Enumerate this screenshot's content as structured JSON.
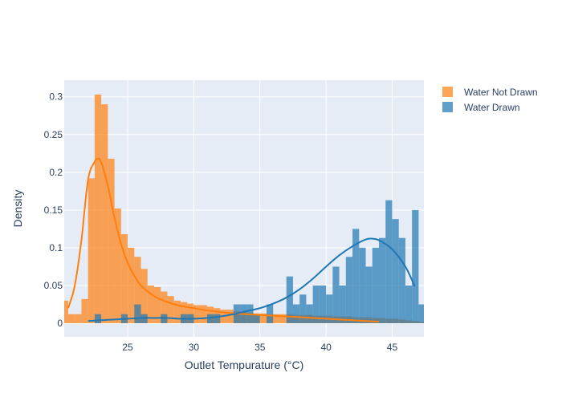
{
  "chart_data": {
    "type": "histogram",
    "title": "",
    "xlabel": "Outlet Tempurature (°C)",
    "ylabel": "Density",
    "xlim": [
      20.2,
      47.4
    ],
    "ylim": [
      -0.018,
      0.322
    ],
    "xticks": [
      25,
      30,
      35,
      40,
      45
    ],
    "yticks": [
      0,
      0.05,
      0.1,
      0.15,
      0.2,
      0.25,
      0.3
    ],
    "ytick_labels": [
      "0",
      "0.05",
      "0.1",
      "0.15",
      "0.2",
      "0.25",
      "0.3"
    ],
    "grid": true,
    "legend_position": "top-right",
    "bin_width": 0.5,
    "series": [
      {
        "name": "Water Not Drawn",
        "color": "#ff7f0e",
        "bins_start": 20.0,
        "values": [
          0.03,
          0.012,
          0.012,
          0.032,
          0.192,
          0.303,
          0.29,
          0.218,
          0.152,
          0.118,
          0.1,
          0.088,
          0.072,
          0.05,
          0.048,
          0.042,
          0.036,
          0.03,
          0.028,
          0.026,
          0.024,
          0.024,
          0.022,
          0.02,
          0.018,
          0.018,
          0.016,
          0.015,
          0.014,
          0.013,
          0.013,
          0.012,
          0.012,
          0.012,
          0.012,
          0.011,
          0.011,
          0.011,
          0.01,
          0.01,
          0.01,
          0.009,
          0.009,
          0.009,
          0.008,
          0.008,
          0.008,
          0.007,
          0.007,
          0.006,
          0.006,
          0.005,
          0.004,
          0.003,
          0.002
        ],
        "kde_x": [
          20.5,
          21,
          21.5,
          22,
          22.5,
          22.75,
          23,
          23.5,
          24,
          24.5,
          25,
          25.5,
          26,
          27,
          28,
          29,
          30,
          31,
          32,
          33,
          34,
          35,
          36,
          37,
          38,
          39,
          40,
          41,
          42,
          43,
          44
        ],
        "kde_y": [
          0.02,
          0.05,
          0.11,
          0.19,
          0.214,
          0.218,
          0.213,
          0.182,
          0.14,
          0.105,
          0.08,
          0.063,
          0.05,
          0.036,
          0.028,
          0.023,
          0.02,
          0.017,
          0.015,
          0.013,
          0.012,
          0.011,
          0.01,
          0.009,
          0.008,
          0.007,
          0.006,
          0.005,
          0.004,
          0.003,
          0.002
        ]
      },
      {
        "name": "Water Drawn",
        "color": "#1f77b4",
        "bins_start": 22.0,
        "values": [
          0.0,
          0.012,
          0.0,
          0.0,
          0.0,
          0.012,
          0.0,
          0.025,
          0.012,
          0.0,
          0.0,
          0.012,
          0.0,
          0.0,
          0.012,
          0.012,
          0.0,
          0.0,
          0.012,
          0.012,
          0.0,
          0.0,
          0.025,
          0.025,
          0.025,
          0.012,
          0.0,
          0.025,
          0.0,
          0.0,
          0.062,
          0.025,
          0.038,
          0.025,
          0.05,
          0.05,
          0.038,
          0.075,
          0.05,
          0.088,
          0.125,
          0.1,
          0.075,
          0.1,
          0.113,
          0.163,
          0.138,
          0.113,
          0.05,
          0.15,
          0.025,
          0.012
        ],
        "kde_x": [
          22,
          23,
          24,
          25,
          26,
          27,
          28,
          29,
          30,
          31,
          32,
          33,
          34,
          35,
          36,
          37,
          38,
          39,
          40,
          41,
          42,
          43,
          43.5,
          44,
          45,
          46,
          46.7
        ],
        "kde_y": [
          0.003,
          0.004,
          0.005,
          0.006,
          0.007,
          0.007,
          0.007,
          0.006,
          0.006,
          0.007,
          0.009,
          0.012,
          0.016,
          0.02,
          0.026,
          0.034,
          0.045,
          0.059,
          0.075,
          0.09,
          0.102,
          0.111,
          0.112,
          0.11,
          0.098,
          0.075,
          0.049
        ]
      }
    ]
  }
}
